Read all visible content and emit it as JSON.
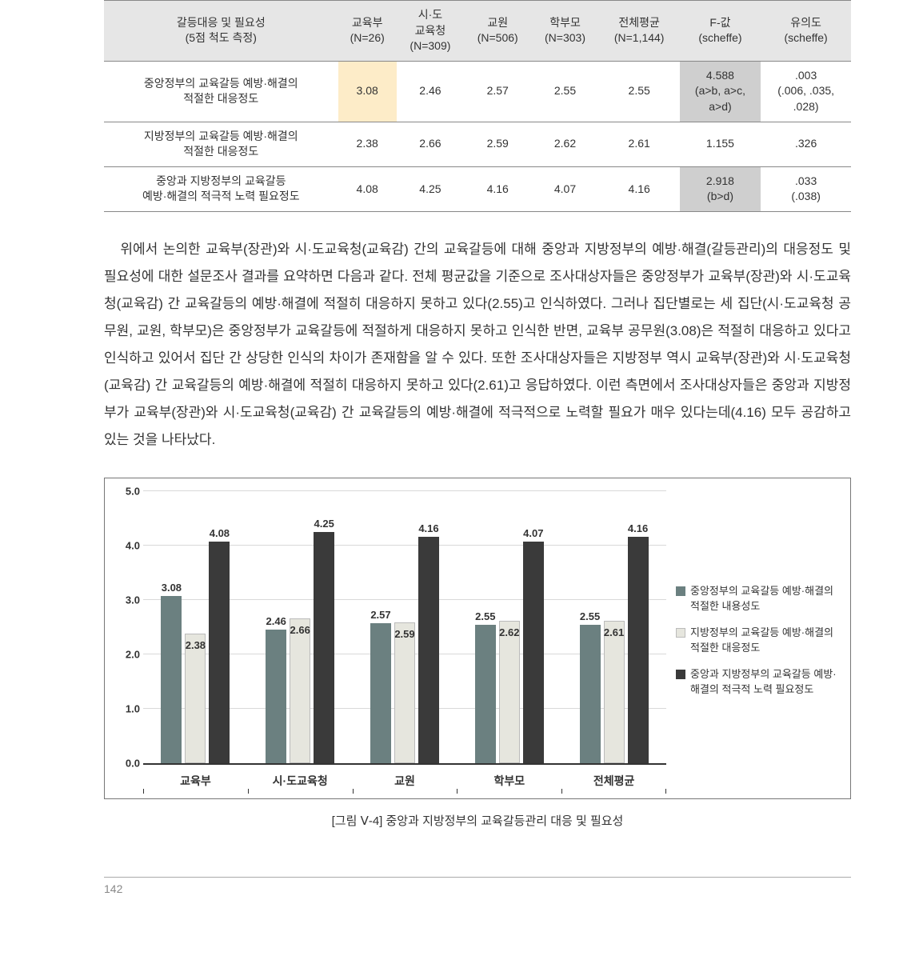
{
  "table": {
    "headers": {
      "c0": "갈등대응 및 필요성\n(5점 척도 측정)",
      "c1": "교육부\n(N=26)",
      "c2": "시·도\n교육청\n(N=309)",
      "c3": "교원\n(N=506)",
      "c4": "학부모\n(N=303)",
      "c5": "전체평균\n(N=1,144)",
      "c6": "F-값\n(scheffe)",
      "c7": "유의도\n(scheffe)"
    },
    "rows": [
      {
        "label": "중앙정부의 교육갈등 예방·해결의\n적절한 대응정도",
        "v1": "3.08",
        "v2": "2.46",
        "v3": "2.57",
        "v4": "2.55",
        "v5": "2.55",
        "f": "4.588\n(a>b, a>c,\na>d)",
        "sig": ".003\n(.006, .035,\n.028)",
        "hl_v1": true,
        "hl_f": true
      },
      {
        "label": "지방정부의 교육갈등 예방·해결의\n적절한 대응정도",
        "v1": "2.38",
        "v2": "2.66",
        "v3": "2.59",
        "v4": "2.62",
        "v5": "2.61",
        "f": "1.155",
        "sig": ".326"
      },
      {
        "label": "중앙과 지방정부의 교육갈등\n예방·해결의 적극적 노력 필요정도",
        "v1": "4.08",
        "v2": "4.25",
        "v3": "4.16",
        "v4": "4.07",
        "v5": "4.16",
        "f": "2.918\n(b>d)",
        "sig": ".033\n(.038)",
        "hl_f": true
      }
    ]
  },
  "paragraph": "위에서 논의한 교육부(장관)와 시·도교육청(교육감) 간의 교육갈등에 대해 중앙과 지방정부의 예방·해결(갈등관리)의 대응정도 및 필요성에 대한 설문조사 결과를 요약하면 다음과 같다. 전체 평균값을 기준으로 조사대상자들은 중앙정부가 교육부(장관)와 시·도교육청(교육감) 간 교육갈등의 예방·해결에 적절히 대응하지 못하고 있다(2.55)고 인식하였다. 그러나 집단별로는 세 집단(시·도교육청 공무원, 교원, 학부모)은 중앙정부가 교육갈등에 적절하게 대응하지 못하고 인식한 반면, 교육부 공무원(3.08)은 적절히 대응하고 있다고 인식하고 있어서 집단 간 상당한 인식의 차이가 존재함을 알 수 있다. 또한 조사대상자들은 지방정부 역시 교육부(장관)와 시·도교육청(교육감) 간 교육갈등의 예방·해결에 적절히 대응하지 못하고 있다(2.61)고 응답하였다. 이런 측면에서 조사대상자들은 중앙과 지방정부가 교육부(장관)와 시·도교육청(교육감) 간 교육갈등의 예방·해결에 적극적으로 노력할 필요가 매우 있다는데(4.16) 모두 공감하고 있는 것을 나타났다.",
  "chart": {
    "type": "bar",
    "ylim": [
      0,
      5
    ],
    "ytick_step": 1.0,
    "ylabels": [
      "0.0",
      "1.0",
      "2.0",
      "3.0",
      "4.0",
      "5.0"
    ],
    "grid_color": "#d9d9d9",
    "colors": {
      "s1": "#6b8080",
      "s2": "#e6e6de",
      "s3": "#3a3a3a"
    },
    "categories": [
      "교육부",
      "시·도교육청",
      "교원",
      "학부모",
      "전체평균"
    ],
    "series": [
      {
        "name": "중앙정부의 교육갈등 예방·해결의 적절한 내용성도",
        "key": "s1",
        "values": [
          3.08,
          2.46,
          2.57,
          2.55,
          2.55
        ],
        "label_pos": [
          "top",
          "top",
          "top",
          "top",
          "top"
        ]
      },
      {
        "name": "지방정부의 교육갈등 예방·해결의 적절한 대응정도",
        "key": "s2",
        "values": [
          2.38,
          2.66,
          2.59,
          2.62,
          2.61
        ],
        "label_pos": [
          "inside",
          "inside",
          "inside",
          "inside",
          "inside"
        ]
      },
      {
        "name": "중앙과 지방정부의 교육갈등 예방·해결의 적극적 노력 필요정도",
        "key": "s3",
        "values": [
          4.08,
          4.25,
          4.16,
          4.07,
          4.16
        ],
        "label_pos": [
          "top",
          "top",
          "top",
          "top",
          "top"
        ]
      }
    ],
    "caption": "[그림 Ⅴ-4] 중앙과 지방정부의 교육갈등관리 대응 및 필요성"
  },
  "page_number": "142"
}
